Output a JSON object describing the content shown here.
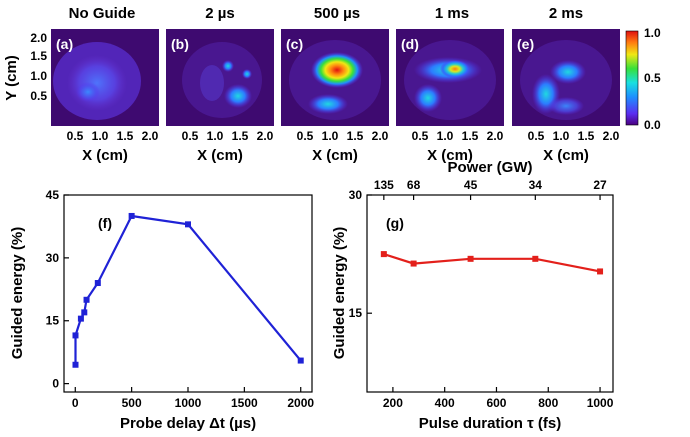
{
  "chart_data": [
    {
      "type": "heatmap",
      "panels": [
        {
          "tag": "(a)",
          "title": "No Guide"
        },
        {
          "tag": "(b)",
          "title": "2 µs"
        },
        {
          "tag": "(c)",
          "title": "500 µs"
        },
        {
          "tag": "(d)",
          "title": "1 ms"
        },
        {
          "tag": "(e)",
          "title": "2 ms"
        }
      ],
      "xlabel": "X (cm)",
      "ylabel": "Y (cm)",
      "xticks": [
        "0.5",
        "1.0",
        "1.5",
        "2.0"
      ],
      "yticks": [
        "2.0",
        "1.5",
        "1.0",
        "0.5"
      ],
      "colorbar": {
        "ticks": [
          "1.0",
          "0.5",
          "0.0"
        ],
        "range": [
          0,
          1
        ]
      }
    },
    {
      "type": "line",
      "tag": "(f)",
      "xlabel": "Probe delay Δt (µs)",
      "ylabel": "Guided energy (%)",
      "xticks": [
        "0",
        "500",
        "1000",
        "1500",
        "2000"
      ],
      "yticks": [
        "0",
        "15",
        "30",
        "45"
      ],
      "xlim": [
        -100,
        2100
      ],
      "ylim": [
        -2,
        45
      ],
      "color": "#1f22d6",
      "x": [
        2,
        2,
        50,
        80,
        100,
        200,
        500,
        1000,
        2000
      ],
      "y": [
        4.5,
        11.5,
        15.5,
        17,
        20,
        24,
        40,
        38,
        5.5
      ]
    },
    {
      "type": "line",
      "tag": "(g)",
      "xlabel": "Pulse duration τ (fs)",
      "ylabel": "Guided energy (%)",
      "top_xlabel": "Power (GW)",
      "top_xticks": [
        "135",
        "68",
        "45",
        "34",
        "27"
      ],
      "top_xtick_positions": [
        165,
        280,
        500,
        750,
        1000
      ],
      "xticks": [
        "200",
        "400",
        "600",
        "800",
        "1000"
      ],
      "yticks": [
        "15",
        "30"
      ],
      "xlim": [
        100,
        1050
      ],
      "ylim": [
        5,
        30
      ],
      "color": "#e3201b",
      "x": [
        165,
        280,
        500,
        750,
        1000
      ],
      "y": [
        22.5,
        21.3,
        21.9,
        21.9,
        20.3
      ]
    }
  ]
}
